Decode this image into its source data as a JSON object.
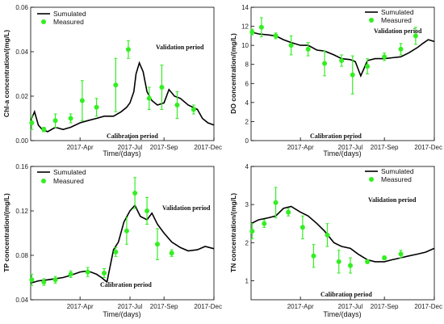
{
  "chart_data": [
    {
      "type": "line",
      "ylabel": "Chl-a concentration/(mg/L)",
      "xlabel": "Time/(days)",
      "xlim": [
        "2017-01-01",
        "2017-12-01"
      ],
      "xticks": [
        "2017-Apr",
        "2017-Jul",
        "2017-Sep",
        "2017-Dec"
      ],
      "ylim": [
        0,
        0.06
      ],
      "yticks": [
        "0.00",
        "0.02",
        "0.04",
        "0.06"
      ],
      "legend_position": "top-left",
      "annotations": [
        "Validation period",
        "Calibration period"
      ],
      "series": [
        {
          "name": "Sumulated",
          "x": [
            "2017-01-01",
            "2017-01-08",
            "2017-01-15",
            "2017-01-22",
            "2017-02-01",
            "2017-02-15",
            "2017-03-01",
            "2017-03-15",
            "2017-04-01",
            "2017-04-15",
            "2017-05-01",
            "2017-05-15",
            "2017-06-01",
            "2017-06-15",
            "2017-06-25",
            "2017-07-01",
            "2017-07-08",
            "2017-07-12",
            "2017-07-18",
            "2017-07-25",
            "2017-08-01",
            "2017-08-10",
            "2017-08-20",
            "2017-09-01",
            "2017-09-10",
            "2017-09-20",
            "2017-10-01",
            "2017-10-15",
            "2017-11-01",
            "2017-11-10",
            "2017-11-20",
            "2017-12-01"
          ],
          "y": [
            0.009,
            0.013,
            0.007,
            0.005,
            0.004,
            0.006,
            0.005,
            0.006,
            0.008,
            0.009,
            0.01,
            0.011,
            0.011,
            0.013,
            0.015,
            0.017,
            0.022,
            0.03,
            0.035,
            0.031,
            0.022,
            0.018,
            0.016,
            0.017,
            0.023,
            0.02,
            0.019,
            0.016,
            0.014,
            0.01,
            0.008,
            0.007
          ]
        },
        {
          "name": "Measured",
          "points": [
            {
              "x": "2017-01-03",
              "y": 0.008,
              "err": 0.003
            },
            {
              "x": "2017-01-25",
              "y": 0.005,
              "err": 0.001
            },
            {
              "x": "2017-02-15",
              "y": 0.009,
              "err": 0.003
            },
            {
              "x": "2017-03-15",
              "y": 0.01,
              "err": 0.002
            },
            {
              "x": "2017-04-05",
              "y": 0.018,
              "err": 0.009
            },
            {
              "x": "2017-05-01",
              "y": 0.015,
              "err": 0.004
            },
            {
              "x": "2017-06-05",
              "y": 0.025,
              "err": 0.012
            },
            {
              "x": "2017-06-28",
              "y": 0.041,
              "err": 0.004
            },
            {
              "x": "2017-08-05",
              "y": 0.019,
              "err": 0.005
            },
            {
              "x": "2017-08-28",
              "y": 0.024,
              "err": 0.01
            },
            {
              "x": "2017-09-25",
              "y": 0.016,
              "err": 0.006
            },
            {
              "x": "2017-10-25",
              "y": 0.014,
              "err": 0.002
            }
          ]
        }
      ]
    },
    {
      "type": "line",
      "ylabel": "DO concentration/(mg/L)",
      "xlabel": "Time/(days)",
      "xlim": [
        "2017-01-01",
        "2017-12-01"
      ],
      "xticks": [
        "2017-Apr",
        "2017-Jul",
        "2017-Sep",
        "2017-Dec"
      ],
      "ylim": [
        0,
        14
      ],
      "yticks": [
        "0",
        "2",
        "4",
        "6",
        "8",
        "10",
        "12",
        "14"
      ],
      "legend_position": "top-right",
      "annotations": [
        "Validation period",
        "Calibration period"
      ],
      "series": [
        {
          "name": "Sumulated",
          "x": [
            "2017-01-01",
            "2017-01-15",
            "2017-02-01",
            "2017-02-15",
            "2017-03-01",
            "2017-03-15",
            "2017-04-01",
            "2017-04-15",
            "2017-05-01",
            "2017-05-15",
            "2017-06-01",
            "2017-06-15",
            "2017-07-01",
            "2017-07-10",
            "2017-07-20",
            "2017-08-01",
            "2017-08-15",
            "2017-09-01",
            "2017-09-15",
            "2017-10-01",
            "2017-10-15",
            "2017-11-01",
            "2017-11-10",
            "2017-11-20",
            "2017-12-01"
          ],
          "y": [
            11.4,
            11.2,
            11.1,
            11.0,
            10.6,
            10.3,
            10.0,
            10.0,
            9.5,
            9.4,
            9.0,
            8.6,
            8.5,
            8.3,
            6.8,
            8.4,
            8.6,
            8.6,
            8.7,
            8.8,
            9.2,
            9.8,
            10.2,
            10.6,
            10.4
          ]
        },
        {
          "name": "Measured",
          "points": [
            {
              "x": "2017-01-03",
              "y": 11.4,
              "err": 0.3
            },
            {
              "x": "2017-01-20",
              "y": 11.9,
              "err": 1.0
            },
            {
              "x": "2017-02-15",
              "y": 11.0,
              "err": 0.3
            },
            {
              "x": "2017-03-15",
              "y": 10.0,
              "err": 1.0
            },
            {
              "x": "2017-04-15",
              "y": 9.6,
              "err": 0.7
            },
            {
              "x": "2017-05-15",
              "y": 8.1,
              "err": 1.3
            },
            {
              "x": "2017-06-15",
              "y": 8.4,
              "err": 0.6
            },
            {
              "x": "2017-07-05",
              "y": 6.9,
              "err": 2.0
            },
            {
              "x": "2017-08-01",
              "y": 7.8,
              "err": 0.8
            },
            {
              "x": "2017-09-01",
              "y": 8.8,
              "err": 0.4
            },
            {
              "x": "2017-10-01",
              "y": 9.6,
              "err": 0.6
            },
            {
              "x": "2017-10-28",
              "y": 11.0,
              "err": 0.9
            }
          ]
        }
      ]
    },
    {
      "type": "line",
      "ylabel": "TP concentration/(mg/L)",
      "xlabel": "Time/(days)",
      "xlim": [
        "2017-01-01",
        "2017-12-01"
      ],
      "xticks": [
        "2017-Apr",
        "2017-Jul",
        "2017-Sep",
        "2017-Dec"
      ],
      "ylim": [
        0.04,
        0.16
      ],
      "yticks": [
        "0.04",
        "0.08",
        "0.12",
        "0.16"
      ],
      "legend_position": "top-left",
      "annotations": [
        "Validation period",
        "Calibration period"
      ],
      "series": [
        {
          "name": "Sumulated",
          "x": [
            "2017-01-01",
            "2017-01-15",
            "2017-02-01",
            "2017-02-15",
            "2017-03-01",
            "2017-03-15",
            "2017-04-01",
            "2017-04-15",
            "2017-05-01",
            "2017-05-10",
            "2017-05-20",
            "2017-06-01",
            "2017-06-10",
            "2017-06-20",
            "2017-07-01",
            "2017-07-10",
            "2017-07-20",
            "2017-08-01",
            "2017-08-10",
            "2017-08-20",
            "2017-09-01",
            "2017-09-15",
            "2017-10-01",
            "2017-10-15",
            "2017-11-01",
            "2017-11-15",
            "2017-12-01"
          ],
          "y": [
            0.055,
            0.057,
            0.058,
            0.059,
            0.06,
            0.062,
            0.065,
            0.066,
            0.063,
            0.06,
            0.056,
            0.085,
            0.092,
            0.11,
            0.12,
            0.125,
            0.115,
            0.112,
            0.118,
            0.108,
            0.1,
            0.092,
            0.087,
            0.084,
            0.085,
            0.088,
            0.086
          ]
        },
        {
          "name": "Measured",
          "points": [
            {
              "x": "2017-01-03",
              "y": 0.058,
              "err": 0.005
            },
            {
              "x": "2017-01-25",
              "y": 0.056,
              "err": 0.003
            },
            {
              "x": "2017-02-15",
              "y": 0.058,
              "err": 0.003
            },
            {
              "x": "2017-03-15",
              "y": 0.063,
              "err": 0.003
            },
            {
              "x": "2017-04-15",
              "y": 0.065,
              "err": 0.004
            },
            {
              "x": "2017-05-15",
              "y": 0.064,
              "err": 0.004
            },
            {
              "x": "2017-06-05",
              "y": 0.083,
              "err": 0.004
            },
            {
              "x": "2017-06-25",
              "y": 0.102,
              "err": 0.012
            },
            {
              "x": "2017-07-10",
              "y": 0.136,
              "err": 0.014
            },
            {
              "x": "2017-08-01",
              "y": 0.12,
              "err": 0.012
            },
            {
              "x": "2017-08-20",
              "y": 0.09,
              "err": 0.014
            },
            {
              "x": "2017-09-15",
              "y": 0.082,
              "err": 0.003
            }
          ]
        }
      ]
    },
    {
      "type": "line",
      "ylabel": "TN concentration/(mg/L)",
      "xlabel": "Time/(days)",
      "xlim": [
        "2017-01-01",
        "2017-12-01"
      ],
      "xticks": [
        "2017-Apr",
        "2017-Jul",
        "2017-Sep",
        "2017-Dec"
      ],
      "ylim": [
        0.5,
        4.0
      ],
      "yticks": [
        "1",
        "2",
        "3",
        "4"
      ],
      "legend_position": "top-right",
      "annotations": [
        "Validation period",
        "Calibration period"
      ],
      "series": [
        {
          "name": "Sumulated",
          "x": [
            "2017-01-01",
            "2017-01-15",
            "2017-02-01",
            "2017-02-15",
            "2017-03-01",
            "2017-03-15",
            "2017-04-01",
            "2017-04-15",
            "2017-05-01",
            "2017-05-15",
            "2017-06-01",
            "2017-06-15",
            "2017-07-01",
            "2017-07-15",
            "2017-08-01",
            "2017-08-15",
            "2017-09-01",
            "2017-09-15",
            "2017-10-01",
            "2017-10-15",
            "2017-11-01",
            "2017-11-15",
            "2017-12-01"
          ],
          "y": [
            2.5,
            2.6,
            2.65,
            2.7,
            2.9,
            2.95,
            2.8,
            2.7,
            2.5,
            2.3,
            2.0,
            1.9,
            1.85,
            1.7,
            1.55,
            1.5,
            1.5,
            1.55,
            1.6,
            1.65,
            1.7,
            1.75,
            1.85
          ]
        },
        {
          "name": "Measured",
          "points": [
            {
              "x": "2017-01-03",
              "y": 2.3,
              "err": 0.2
            },
            {
              "x": "2017-01-25",
              "y": 2.5,
              "err": 0.1
            },
            {
              "x": "2017-02-15",
              "y": 3.05,
              "err": 0.4
            },
            {
              "x": "2017-03-10",
              "y": 2.8,
              "err": 0.1
            },
            {
              "x": "2017-04-05",
              "y": 2.4,
              "err": 0.3
            },
            {
              "x": "2017-04-25",
              "y": 1.65,
              "err": 0.3
            },
            {
              "x": "2017-05-20",
              "y": 2.2,
              "err": 0.3
            },
            {
              "x": "2017-06-10",
              "y": 1.5,
              "err": 0.3
            },
            {
              "x": "2017-07-01",
              "y": 1.4,
              "err": 0.2
            },
            {
              "x": "2017-08-01",
              "y": 1.5,
              "err": 0.05
            },
            {
              "x": "2017-09-01",
              "y": 1.6,
              "err": 0.05
            },
            {
              "x": "2017-10-01",
              "y": 1.7,
              "err": 0.1
            }
          ]
        }
      ]
    }
  ],
  "colors": {
    "simulated": "#000000",
    "measured": "#33ee22"
  }
}
